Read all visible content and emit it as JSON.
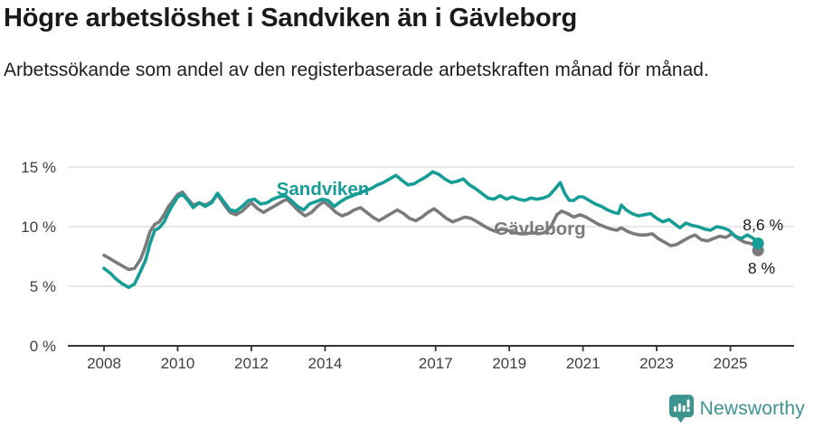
{
  "header": {
    "title": "Högre arbetslöshet i Sandviken än i Gävleborg",
    "subtitle": "Arbetssökande som andel av den registerbaserade arbetskraften månad för månad."
  },
  "chart_data": {
    "type": "line",
    "title": "Högre arbetslöshet i Sandviken än i Gävleborg",
    "xlabel": "",
    "ylabel": "Arbetssökande som andel av den registerbaserade arbetskraften",
    "x_axis": {
      "ticks": [
        2008,
        2010,
        2012,
        2014,
        2017,
        2019,
        2021,
        2023,
        2025
      ],
      "range": [
        2007.9,
        2026.7
      ]
    },
    "y_axis": {
      "ticks": [
        0,
        5,
        10,
        15
      ],
      "tick_suffix": " %",
      "range": [
        0,
        16.9
      ],
      "grid": true
    },
    "legend_position": "inline-labels",
    "colors": {
      "accent_teal": "#169d95",
      "neutral_gray": "#7b7b7b",
      "grid": "#d9d9d9",
      "axis": "#333333"
    },
    "series": [
      {
        "name": "Gävleborg",
        "color": "#7b7b7b",
        "end_label": "8 %",
        "last_value": 8.0,
        "points": [
          [
            2008.0,
            7.6
          ],
          [
            2008.17,
            7.3
          ],
          [
            2008.33,
            7.0
          ],
          [
            2008.5,
            6.7
          ],
          [
            2008.67,
            6.4
          ],
          [
            2008.83,
            6.5
          ],
          [
            2009.0,
            7.3
          ],
          [
            2009.13,
            8.4
          ],
          [
            2009.25,
            9.6
          ],
          [
            2009.38,
            10.2
          ],
          [
            2009.5,
            10.4
          ],
          [
            2009.63,
            11.0
          ],
          [
            2009.75,
            11.7
          ],
          [
            2009.88,
            12.2
          ],
          [
            2010.0,
            12.7
          ],
          [
            2010.13,
            12.9
          ],
          [
            2010.25,
            12.4
          ],
          [
            2010.42,
            11.8
          ],
          [
            2010.58,
            12.0
          ],
          [
            2010.75,
            11.8
          ],
          [
            2010.92,
            12.1
          ],
          [
            2011.08,
            12.7
          ],
          [
            2011.25,
            11.9
          ],
          [
            2011.42,
            11.2
          ],
          [
            2011.58,
            11.0
          ],
          [
            2011.75,
            11.3
          ],
          [
            2011.92,
            11.8
          ],
          [
            2012.0,
            12.0
          ],
          [
            2012.17,
            11.5
          ],
          [
            2012.33,
            11.2
          ],
          [
            2012.5,
            11.5
          ],
          [
            2012.67,
            11.8
          ],
          [
            2012.83,
            12.1
          ],
          [
            2012.96,
            12.3
          ],
          [
            2013.13,
            11.8
          ],
          [
            2013.29,
            11.3
          ],
          [
            2013.46,
            10.9
          ],
          [
            2013.63,
            11.2
          ],
          [
            2013.79,
            11.7
          ],
          [
            2013.96,
            12.1
          ],
          [
            2014.13,
            11.7
          ],
          [
            2014.29,
            11.2
          ],
          [
            2014.46,
            10.9
          ],
          [
            2014.63,
            11.1
          ],
          [
            2014.79,
            11.4
          ],
          [
            2014.96,
            11.6
          ],
          [
            2015.13,
            11.2
          ],
          [
            2015.29,
            10.8
          ],
          [
            2015.46,
            10.5
          ],
          [
            2015.63,
            10.8
          ],
          [
            2015.79,
            11.1
          ],
          [
            2015.96,
            11.4
          ],
          [
            2016.13,
            11.1
          ],
          [
            2016.29,
            10.7
          ],
          [
            2016.46,
            10.5
          ],
          [
            2016.63,
            10.8
          ],
          [
            2016.79,
            11.2
          ],
          [
            2016.96,
            11.5
          ],
          [
            2017.13,
            11.1
          ],
          [
            2017.29,
            10.7
          ],
          [
            2017.46,
            10.4
          ],
          [
            2017.63,
            10.6
          ],
          [
            2017.79,
            10.8
          ],
          [
            2017.96,
            10.7
          ],
          [
            2018.13,
            10.4
          ],
          [
            2018.29,
            10.1
          ],
          [
            2018.46,
            9.8
          ],
          [
            2018.63,
            9.6
          ],
          [
            2018.79,
            9.8
          ],
          [
            2018.96,
            9.7
          ],
          [
            2019.13,
            9.5
          ],
          [
            2019.29,
            9.4
          ],
          [
            2019.46,
            9.4
          ],
          [
            2019.63,
            9.5
          ],
          [
            2019.79,
            9.4
          ],
          [
            2019.96,
            9.5
          ],
          [
            2020.13,
            10.0
          ],
          [
            2020.29,
            11.0
          ],
          [
            2020.42,
            11.3
          ],
          [
            2020.58,
            11.1
          ],
          [
            2020.75,
            10.8
          ],
          [
            2020.92,
            11.0
          ],
          [
            2021.08,
            10.8
          ],
          [
            2021.25,
            10.5
          ],
          [
            2021.42,
            10.2
          ],
          [
            2021.58,
            10.0
          ],
          [
            2021.75,
            9.8
          ],
          [
            2021.92,
            9.7
          ],
          [
            2022.04,
            9.9
          ],
          [
            2022.21,
            9.6
          ],
          [
            2022.38,
            9.4
          ],
          [
            2022.54,
            9.3
          ],
          [
            2022.71,
            9.3
          ],
          [
            2022.88,
            9.4
          ],
          [
            2023.04,
            9.0
          ],
          [
            2023.21,
            8.7
          ],
          [
            2023.38,
            8.4
          ],
          [
            2023.54,
            8.5
          ],
          [
            2023.71,
            8.8
          ],
          [
            2023.88,
            9.1
          ],
          [
            2024.04,
            9.3
          ],
          [
            2024.21,
            8.9
          ],
          [
            2024.38,
            8.8
          ],
          [
            2024.54,
            9.0
          ],
          [
            2024.71,
            9.2
          ],
          [
            2024.88,
            9.1
          ],
          [
            2025.04,
            9.4
          ],
          [
            2025.21,
            9.0
          ],
          [
            2025.38,
            8.7
          ],
          [
            2025.54,
            8.6
          ],
          [
            2025.67,
            8.4
          ],
          [
            2025.75,
            8.0
          ]
        ]
      },
      {
        "name": "Sandviken",
        "color": "#169d95",
        "end_label": "8,6 %",
        "last_value": 8.6,
        "points": [
          [
            2008.0,
            6.5
          ],
          [
            2008.17,
            6.1
          ],
          [
            2008.33,
            5.6
          ],
          [
            2008.5,
            5.2
          ],
          [
            2008.67,
            4.9
          ],
          [
            2008.83,
            5.2
          ],
          [
            2009.0,
            6.3
          ],
          [
            2009.13,
            7.2
          ],
          [
            2009.25,
            8.6
          ],
          [
            2009.38,
            9.7
          ],
          [
            2009.5,
            9.9
          ],
          [
            2009.63,
            10.4
          ],
          [
            2009.75,
            11.2
          ],
          [
            2009.88,
            11.9
          ],
          [
            2010.0,
            12.5
          ],
          [
            2010.13,
            12.7
          ],
          [
            2010.25,
            12.3
          ],
          [
            2010.42,
            11.6
          ],
          [
            2010.58,
            12.0
          ],
          [
            2010.75,
            11.7
          ],
          [
            2010.92,
            12.0
          ],
          [
            2011.08,
            12.8
          ],
          [
            2011.25,
            12.1
          ],
          [
            2011.42,
            11.4
          ],
          [
            2011.58,
            11.3
          ],
          [
            2011.75,
            11.7
          ],
          [
            2011.92,
            12.2
          ],
          [
            2012.08,
            12.3
          ],
          [
            2012.25,
            11.9
          ],
          [
            2012.42,
            12.0
          ],
          [
            2012.58,
            12.3
          ],
          [
            2012.75,
            12.5
          ],
          [
            2012.92,
            12.6
          ],
          [
            2013.08,
            12.2
          ],
          [
            2013.25,
            11.7
          ],
          [
            2013.42,
            11.4
          ],
          [
            2013.58,
            11.9
          ],
          [
            2013.75,
            12.1
          ],
          [
            2013.92,
            12.3
          ],
          [
            2014.08,
            12.2
          ],
          [
            2014.25,
            11.7
          ],
          [
            2014.42,
            12.1
          ],
          [
            2014.58,
            12.4
          ],
          [
            2014.75,
            12.6
          ],
          [
            2014.92,
            12.8
          ],
          [
            2015.08,
            13.0
          ],
          [
            2015.25,
            13.2
          ],
          [
            2015.42,
            13.5
          ],
          [
            2015.58,
            13.7
          ],
          [
            2015.75,
            14.0
          ],
          [
            2015.92,
            14.3
          ],
          [
            2016.08,
            13.9
          ],
          [
            2016.25,
            13.5
          ],
          [
            2016.42,
            13.6
          ],
          [
            2016.58,
            13.9
          ],
          [
            2016.75,
            14.2
          ],
          [
            2016.92,
            14.6
          ],
          [
            2017.08,
            14.4
          ],
          [
            2017.25,
            14.0
          ],
          [
            2017.42,
            13.7
          ],
          [
            2017.58,
            13.8
          ],
          [
            2017.75,
            14.0
          ],
          [
            2017.92,
            13.5
          ],
          [
            2018.08,
            13.2
          ],
          [
            2018.25,
            12.8
          ],
          [
            2018.42,
            12.4
          ],
          [
            2018.58,
            12.3
          ],
          [
            2018.75,
            12.6
          ],
          [
            2018.92,
            12.3
          ],
          [
            2019.08,
            12.5
          ],
          [
            2019.25,
            12.3
          ],
          [
            2019.42,
            12.2
          ],
          [
            2019.58,
            12.4
          ],
          [
            2019.75,
            12.3
          ],
          [
            2019.92,
            12.4
          ],
          [
            2020.08,
            12.6
          ],
          [
            2020.25,
            13.2
          ],
          [
            2020.38,
            13.7
          ],
          [
            2020.5,
            12.8
          ],
          [
            2020.63,
            12.2
          ],
          [
            2020.75,
            12.2
          ],
          [
            2020.88,
            12.5
          ],
          [
            2021.0,
            12.5
          ],
          [
            2021.17,
            12.2
          ],
          [
            2021.33,
            11.9
          ],
          [
            2021.5,
            11.7
          ],
          [
            2021.67,
            11.4
          ],
          [
            2021.83,
            11.2
          ],
          [
            2021.96,
            11.1
          ],
          [
            2022.04,
            11.8
          ],
          [
            2022.17,
            11.4
          ],
          [
            2022.33,
            11.1
          ],
          [
            2022.5,
            10.9
          ],
          [
            2022.67,
            11.0
          ],
          [
            2022.83,
            11.1
          ],
          [
            2023.0,
            10.7
          ],
          [
            2023.17,
            10.4
          ],
          [
            2023.33,
            10.6
          ],
          [
            2023.5,
            10.2
          ],
          [
            2023.63,
            9.9
          ],
          [
            2023.79,
            10.3
          ],
          [
            2023.96,
            10.1
          ],
          [
            2024.13,
            10.0
          ],
          [
            2024.29,
            9.8
          ],
          [
            2024.46,
            9.7
          ],
          [
            2024.63,
            10.0
          ],
          [
            2024.79,
            9.9
          ],
          [
            2024.96,
            9.7
          ],
          [
            2025.13,
            9.2
          ],
          [
            2025.29,
            9.0
          ],
          [
            2025.46,
            9.3
          ],
          [
            2025.63,
            9.0
          ],
          [
            2025.75,
            8.6
          ]
        ]
      }
    ]
  },
  "footer": {
    "brand": "Newsworthy"
  }
}
